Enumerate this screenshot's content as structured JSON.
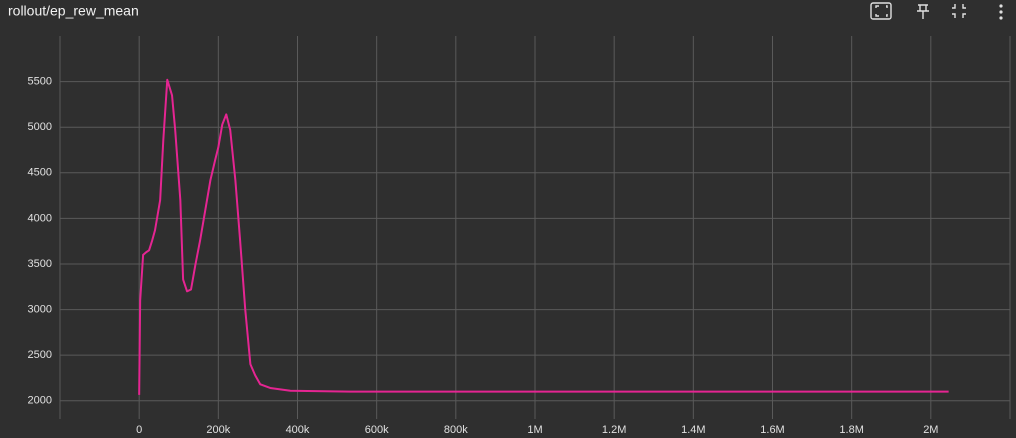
{
  "chart_data": {
    "type": "line",
    "title": "rollout/ep_rew_mean",
    "x": [
      0,
      2500,
      10000,
      18000,
      25000,
      33000,
      40000,
      53000,
      61000,
      71000,
      83000,
      91000,
      104000,
      111000,
      121000,
      131000,
      142000,
      154000,
      167000,
      180000,
      192000,
      200000,
      210000,
      220000,
      230000,
      243000,
      255000,
      268000,
      281000,
      293000,
      306000,
      331000,
      382000,
      533000,
      2045000
    ],
    "series": [
      {
        "name": "ep_rew_mean",
        "color": "#e52592",
        "values": [
          2065,
          3100,
          3600,
          3630,
          3650,
          3760,
          3870,
          4200,
          4860,
          5520,
          5350,
          4970,
          4200,
          3330,
          3200,
          3220,
          3490,
          3760,
          4090,
          4420,
          4640,
          4780,
          5030,
          5140,
          4970,
          4420,
          3760,
          3000,
          2400,
          2280,
          2180,
          2140,
          2110,
          2100,
          2100
        ]
      }
    ],
    "xlim": [
      -200000,
      2200000
    ],
    "xticks": [
      0,
      {
        "value": 200000,
        "label": "200k"
      },
      {
        "value": 400000,
        "label": "400k"
      },
      {
        "value": 600000,
        "label": "600k"
      },
      {
        "value": 800000,
        "label": "800k"
      },
      {
        "value": 1000000,
        "label": "1M"
      },
      {
        "value": 1200000,
        "label": "1.2M"
      },
      {
        "value": 1400000,
        "label": "1.4M"
      },
      {
        "value": 1600000,
        "label": "1.6M"
      },
      {
        "value": 1800000,
        "label": "1.8M"
      },
      {
        "value": 2000000,
        "label": "2M"
      }
    ],
    "ylim": [
      1800,
      6000
    ],
    "yticks": [
      2000,
      2500,
      3000,
      3500,
      4000,
      4500,
      5000,
      5500
    ],
    "grid": true
  }
}
